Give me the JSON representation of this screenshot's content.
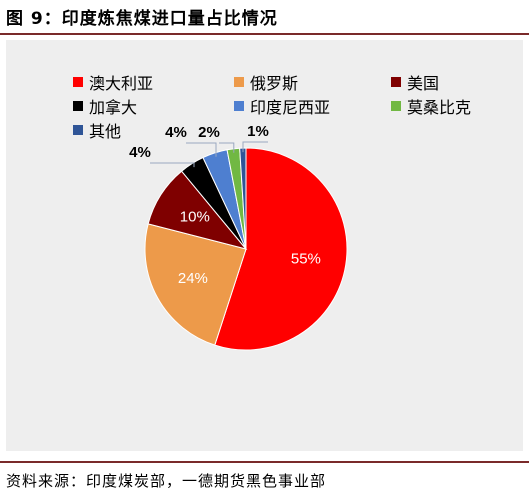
{
  "figure_title": "图 9：印度炼焦煤进口量占比情况",
  "source": "资料来源：印度煤炭部，一德期货黑色事业部",
  "chart_data": {
    "type": "pie",
    "title": "",
    "unit": "%",
    "slices": [
      {
        "name": "澳大利亚",
        "value": 55,
        "label": "55%",
        "color": "#ff0000"
      },
      {
        "name": "俄罗斯",
        "value": 24,
        "label": "24%",
        "color": "#ed9a4a"
      },
      {
        "name": "美国",
        "value": 10,
        "label": "10%",
        "color": "#7f0000"
      },
      {
        "name": "加拿大",
        "value": 4,
        "label": "4%",
        "color": "#000000"
      },
      {
        "name": "印度尼西亚",
        "value": 4,
        "label": "4%",
        "color": "#4e7fd0"
      },
      {
        "name": "莫桑比克",
        "value": 2,
        "label": "2%",
        "color": "#71b843"
      },
      {
        "name": "其他",
        "value": 1,
        "label": "1%",
        "color": "#2f5597"
      }
    ],
    "legend_position": "top"
  }
}
